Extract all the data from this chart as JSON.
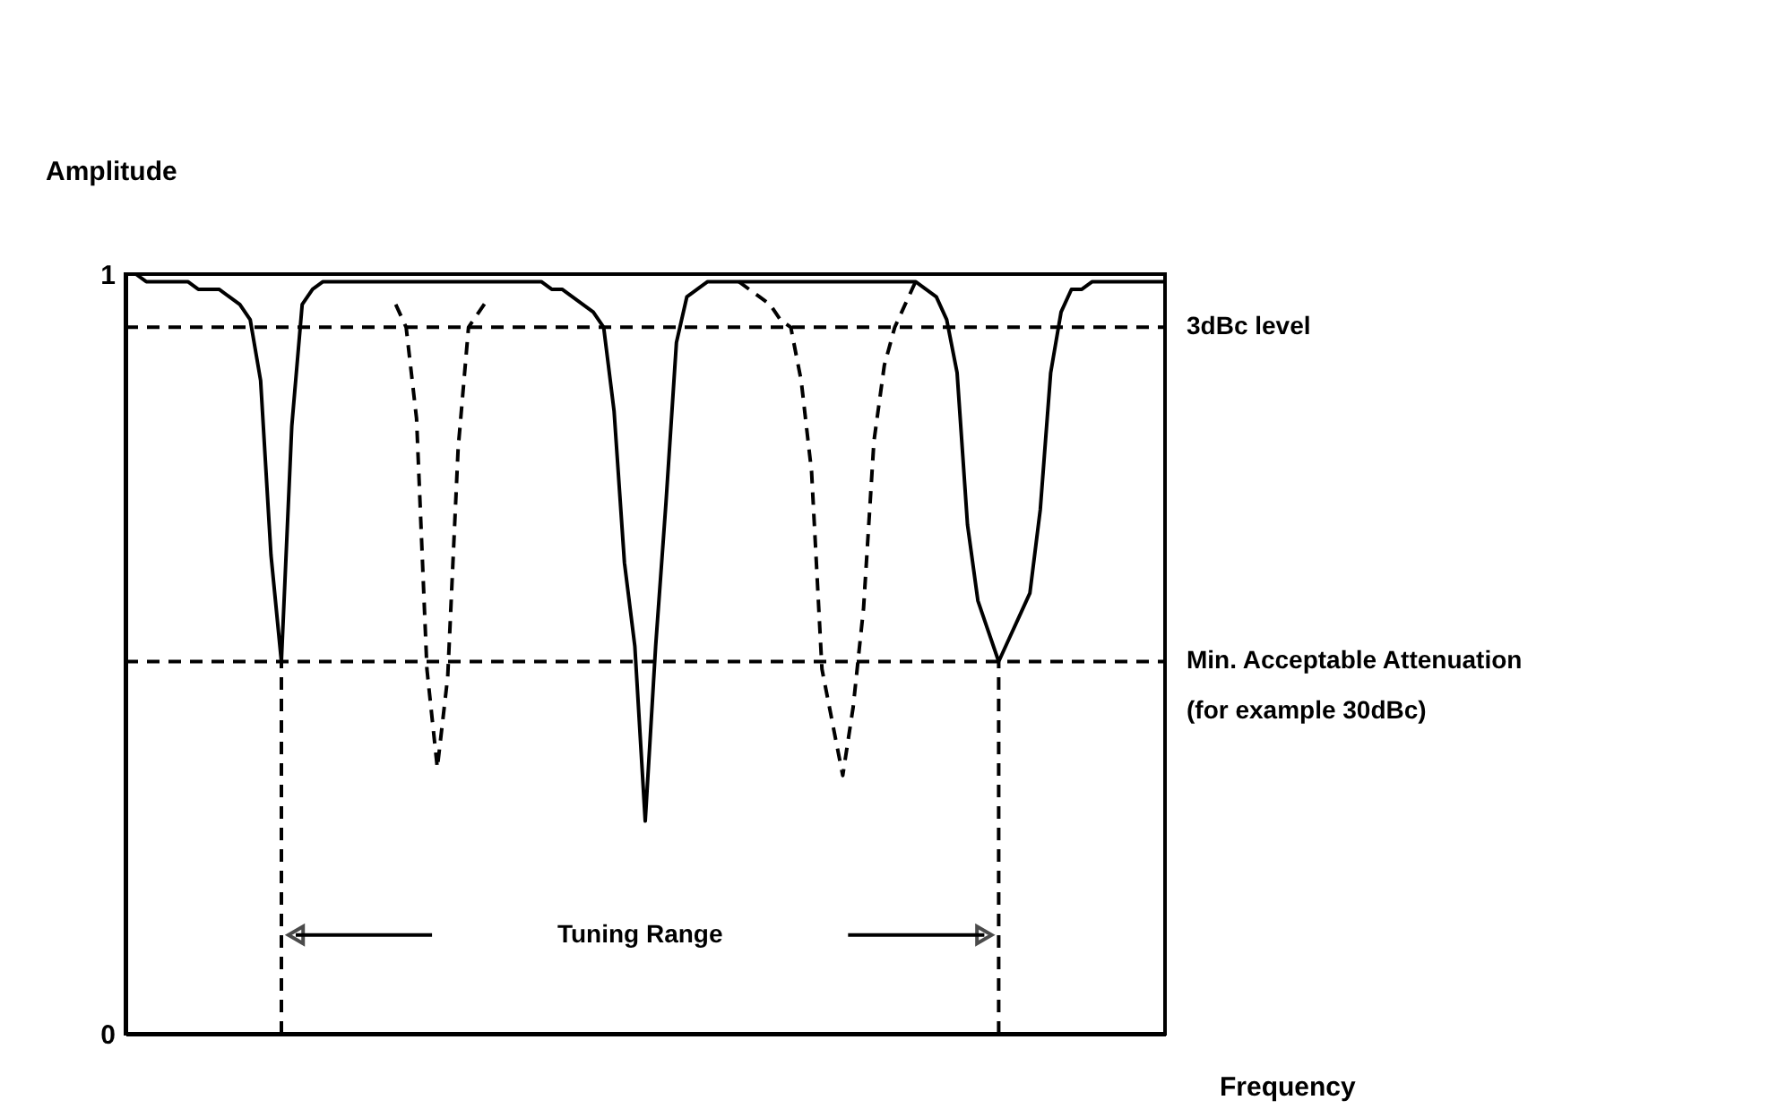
{
  "chart_data": {
    "type": "line",
    "xlabel": "Frequency",
    "ylabel": "Amplitude",
    "ylim": [
      0,
      1
    ],
    "yticks": [
      0,
      1
    ],
    "tick_labels": "y",
    "grid": false,
    "marker": "none",
    "categories": [
      null,
      null,
      null,
      null,
      null,
      null,
      null,
      null,
      null,
      null,
      null,
      null,
      null,
      null,
      null,
      null,
      null,
      null,
      null,
      null,
      null,
      null,
      null,
      null,
      null,
      null,
      null,
      null,
      null,
      null,
      null,
      null,
      null,
      null,
      null,
      null,
      null,
      null,
      null,
      null,
      null,
      null,
      null,
      null,
      null,
      null,
      null,
      null,
      null,
      null,
      null,
      null,
      null,
      null,
      null,
      null,
      null,
      null,
      null,
      null,
      null,
      null,
      null,
      null,
      null,
      null,
      null,
      null,
      null,
      null,
      null,
      null,
      null,
      null,
      null,
      null,
      null,
      null,
      null,
      null,
      null,
      null,
      null,
      null,
      null,
      null,
      null,
      null,
      null,
      null,
      null,
      null,
      null,
      null,
      null,
      null,
      null,
      null,
      null,
      null,
      null
    ],
    "series": [
      {
        "color": "#000000",
        "line_style": "solid",
        "values": [
          1.0,
          1.0,
          0.99,
          0.99,
          0.99,
          0.99,
          0.99,
          0.98,
          0.98,
          0.98,
          0.97,
          0.96,
          0.94,
          0.86,
          0.63,
          0.49,
          0.8,
          0.96,
          0.98,
          0.99,
          0.99,
          0.99,
          0.99,
          0.99,
          0.99,
          0.99,
          0.99,
          0.99,
          0.99,
          0.99,
          0.99,
          0.99,
          0.99,
          0.99,
          0.99,
          0.99,
          0.99,
          0.99,
          0.99,
          0.99,
          0.99,
          0.98,
          0.98,
          0.97,
          0.96,
          0.95,
          0.93,
          0.82,
          0.62,
          0.51,
          0.28,
          0.51,
          0.7,
          0.91,
          0.97,
          0.98,
          0.99,
          0.99,
          0.99,
          0.99,
          0.99,
          0.99,
          0.99,
          0.99,
          0.99,
          0.99,
          0.99,
          0.99,
          0.99,
          0.99,
          0.99,
          0.99,
          0.99,
          0.99,
          0.99,
          0.99,
          0.99,
          0.98,
          0.97,
          0.94,
          0.87,
          0.67,
          0.57,
          0.53,
          0.49,
          0.52,
          0.55,
          0.58,
          0.69,
          0.87,
          0.95,
          0.98,
          0.98,
          0.99,
          0.99,
          0.99,
          0.99,
          0.99,
          0.99,
          0.99,
          0.99
        ],
        "errors": [
          null,
          null,
          null,
          null,
          null,
          null,
          null,
          null,
          null,
          null,
          null,
          null,
          null,
          null,
          null,
          [
            0,
            0.49
          ],
          null,
          null,
          null,
          null,
          null,
          null,
          null,
          null,
          null,
          null,
          null,
          null,
          null,
          null,
          null,
          null,
          null,
          null,
          null,
          null,
          null,
          null,
          null,
          null,
          null,
          null,
          null,
          null,
          null,
          null,
          null,
          null,
          null,
          null,
          null,
          null,
          null,
          null,
          null,
          null,
          null,
          null,
          null,
          null,
          null,
          null,
          null,
          null,
          null,
          null,
          null,
          null,
          null,
          null,
          null,
          null,
          null,
          null,
          null,
          null,
          null,
          null,
          null,
          null,
          null,
          null,
          null,
          null,
          [
            0,
            0.49
          ],
          null,
          null,
          null,
          null,
          null,
          null,
          null,
          null,
          null,
          null,
          null,
          null,
          null,
          null,
          null,
          null
        ]
      },
      {
        "color": "#000000",
        "line_style": "dashed",
        "values": [
          null,
          null,
          null,
          null,
          null,
          null,
          null,
          null,
          null,
          null,
          null,
          null,
          null,
          null,
          null,
          null,
          null,
          null,
          null,
          null,
          null,
          null,
          null,
          null,
          null,
          null,
          0.96,
          0.93,
          0.81,
          0.48,
          0.35,
          0.47,
          0.77,
          0.93,
          0.95,
          0.97,
          null,
          null,
          null,
          null,
          null,
          null,
          null,
          null,
          null,
          null,
          null,
          null,
          null,
          null,
          null,
          null,
          null,
          null,
          null,
          null,
          null,
          null,
          null,
          null,
          null,
          null,
          null,
          null,
          null,
          null,
          null,
          null,
          null,
          null,
          null,
          null,
          null,
          null,
          null,
          null,
          null,
          null,
          null,
          null,
          null,
          null,
          null,
          null,
          null,
          null,
          null,
          null,
          null,
          null,
          null,
          null,
          null,
          null,
          null,
          null,
          null,
          null,
          null,
          null,
          null
        ]
      },
      {
        "color": "#000000",
        "line_style": "dashed",
        "values": [
          null,
          null,
          null,
          null,
          null,
          null,
          null,
          null,
          null,
          null,
          null,
          null,
          null,
          null,
          null,
          null,
          null,
          null,
          null,
          null,
          null,
          null,
          null,
          null,
          null,
          null,
          null,
          null,
          null,
          null,
          null,
          null,
          null,
          null,
          null,
          null,
          null,
          null,
          null,
          null,
          null,
          null,
          null,
          null,
          null,
          null,
          null,
          null,
          null,
          null,
          null,
          null,
          null,
          null,
          null,
          null,
          null,
          null,
          null,
          0.99,
          0.98,
          0.97,
          0.96,
          0.94,
          0.93,
          0.86,
          0.74,
          0.48,
          0.41,
          0.34,
          0.43,
          0.56,
          0.78,
          0.88,
          0.93,
          0.96,
          0.99,
          null,
          null,
          null,
          null,
          null,
          null,
          null,
          null,
          null,
          null,
          null,
          null,
          null,
          null,
          null,
          null,
          null,
          null,
          null,
          null,
          null,
          null,
          null,
          null
        ]
      }
    ],
    "ref_lines": [
      {
        "axis": "y",
        "value": 0.93,
        "label": "3dBc level",
        "color": "#000000",
        "line_style": "dashed"
      },
      {
        "axis": "y",
        "value": 0.49,
        "label": "Min. Acceptable Attenuation\n(for example 30dBc)",
        "color": "#000000",
        "line_style": "dashed"
      }
    ],
    "annotations": [
      "Tuning Range"
    ]
  }
}
